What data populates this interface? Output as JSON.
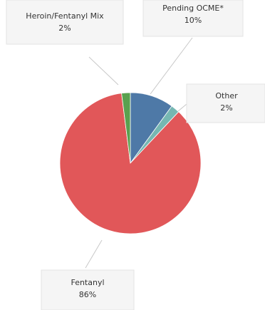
{
  "chart_data": {
    "type": "pie",
    "slices": [
      {
        "label": "Pending OCME*",
        "value": 10,
        "value_text": "10%",
        "color": "#4e79a7"
      },
      {
        "label": "Other",
        "value": 2,
        "value_text": "2%",
        "color": "#76b7b2"
      },
      {
        "label": "Fentanyl",
        "value": 86,
        "value_text": "86%",
        "color": "#e15759"
      },
      {
        "label": "Heroin/Fentanyl Mix",
        "value": 2,
        "value_text": "2%",
        "color": "#59a14f"
      }
    ],
    "legend": "none",
    "labels": "callouts outside pie"
  }
}
